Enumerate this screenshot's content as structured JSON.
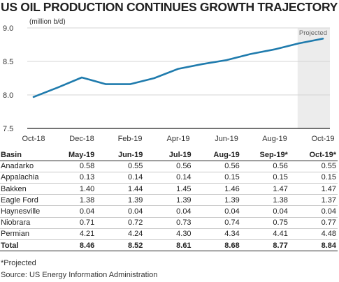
{
  "title": "US OIL PRODUCTION CONTINUES GROWTH TRAJECTORY",
  "colors": {
    "line": "#1f7bad",
    "projected_band": "#ececec",
    "grid": "#d4d4d4",
    "axis": "#222222"
  },
  "chart_data": {
    "type": "line",
    "title": "US OIL PRODUCTION CONTINUES GROWTH TRAJECTORY",
    "ylabel": "(million b/d)",
    "xlabel": "",
    "ylim": [
      7.5,
      9.0
    ],
    "yticks": [
      "9.0",
      "8.5",
      "8.0",
      "7.5"
    ],
    "yticks_values": [
      9.0,
      8.5,
      8.0,
      7.5
    ],
    "x_tick_labels": [
      "Oct-18",
      "Dec-18",
      "Feb-19",
      "Apr-19",
      "Jun-19",
      "Aug-19",
      "Oct-19"
    ],
    "x": [
      "Oct-18",
      "Nov-18",
      "Dec-18",
      "Jan-19",
      "Feb-19",
      "Mar-19",
      "Apr-19",
      "May-19",
      "Jun-19",
      "Jul-19",
      "Aug-19",
      "Sep-19",
      "Oct-19"
    ],
    "values": [
      7.97,
      8.11,
      8.26,
      8.16,
      8.16,
      8.25,
      8.39,
      8.46,
      8.52,
      8.61,
      8.68,
      8.77,
      8.84
    ],
    "projected_label": "Projected",
    "projected_from": "Sep-19",
    "grid": "horizontal"
  },
  "table": {
    "header_basin": "Basin",
    "months": [
      "May-19",
      "Jun-19",
      "Jul-19",
      "Aug-19",
      "Sep-19*",
      "Oct-19*"
    ],
    "rows": [
      {
        "name": "Anadarko",
        "values": [
          "0.58",
          "0.55",
          "0.56",
          "0.56",
          "0.56",
          "0.55"
        ]
      },
      {
        "name": "Appalachia",
        "values": [
          "0.13",
          "0.14",
          "0.14",
          "0.15",
          "0.15",
          "0.15"
        ]
      },
      {
        "name": "Bakken",
        "values": [
          "1.40",
          "1.44",
          "1.45",
          "1.46",
          "1.47",
          "1.47"
        ]
      },
      {
        "name": "Eagle Ford",
        "values": [
          "1.38",
          "1.39",
          "1.39",
          "1.39",
          "1.38",
          "1.37"
        ]
      },
      {
        "name": "Haynesville",
        "values": [
          "0.04",
          "0.04",
          "0.04",
          "0.04",
          "0.04",
          "0.04"
        ]
      },
      {
        "name": "Niobrara",
        "values": [
          "0.71",
          "0.72",
          "0.73",
          "0.74",
          "0.75",
          "0.77"
        ]
      },
      {
        "name": "Permian",
        "values": [
          "4.21",
          "4.24",
          "4.30",
          "4.34",
          "4.41",
          "4.48"
        ]
      }
    ],
    "total": {
      "name": "Total",
      "values": [
        "8.46",
        "8.52",
        "8.61",
        "8.68",
        "8.77",
        "8.84"
      ]
    }
  },
  "footnote": "*Projected",
  "source": "Source: US Energy Information Administration"
}
